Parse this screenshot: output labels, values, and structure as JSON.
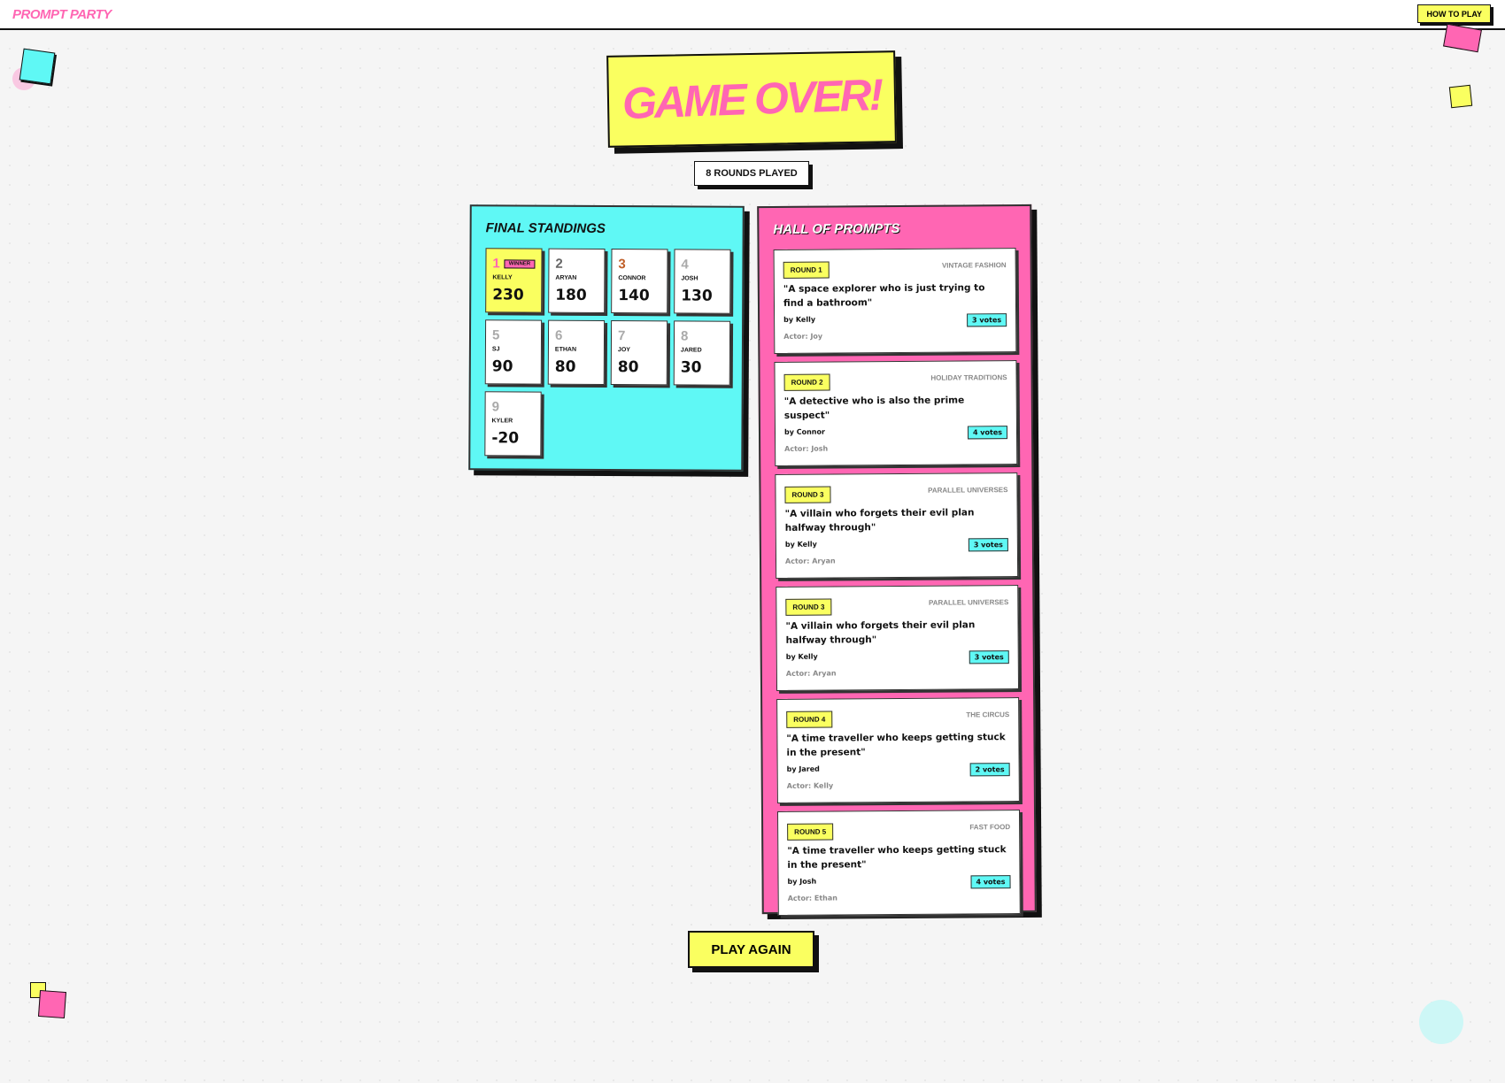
{
  "header": {
    "logo": "PROMPT PARTY",
    "how_to_play": "HOW TO PLAY"
  },
  "colors": {
    "yellow": "#faff60",
    "pink": "#ff66b3",
    "cyan": "#5ff8f5"
  },
  "title": "GAME OVER!",
  "rounds_played": "8 ROUNDS PLAYED",
  "standings": {
    "title": "FINAL STANDINGS",
    "winner_badge": "WINNER",
    "players": [
      {
        "rank": "1",
        "name": "KELLY",
        "score": "230",
        "color": "#ff66b3"
      },
      {
        "rank": "2",
        "name": "ARYAN",
        "score": "180",
        "color": "#666666"
      },
      {
        "rank": "3",
        "name": "CONNOR",
        "score": "140",
        "color": "#c0602a"
      },
      {
        "rank": "4",
        "name": "JOSH",
        "score": "130",
        "color": "#aaaaaa"
      },
      {
        "rank": "5",
        "name": "SJ",
        "score": "90",
        "color": "#aaaaaa"
      },
      {
        "rank": "6",
        "name": "ETHAN",
        "score": "80",
        "color": "#aaaaaa"
      },
      {
        "rank": "7",
        "name": "JOY",
        "score": "80",
        "color": "#aaaaaa"
      },
      {
        "rank": "8",
        "name": "JARED",
        "score": "30",
        "color": "#aaaaaa"
      },
      {
        "rank": "9",
        "name": "KYLER",
        "score": "-20",
        "color": "#aaaaaa"
      }
    ]
  },
  "hall": {
    "title": "HALL OF PROMPTS",
    "prompts": [
      {
        "round": "ROUND 1",
        "theme": "VINTAGE FASHION",
        "text": "\"A space explorer who is just trying to find a bathroom\"",
        "by": "by Kelly",
        "votes": "3 votes",
        "actor": "Actor: Joy"
      },
      {
        "round": "ROUND 2",
        "theme": "HOLIDAY TRADITIONS",
        "text": "\"A detective who is also the prime suspect\"",
        "by": "by Connor",
        "votes": "4 votes",
        "actor": "Actor: Josh"
      },
      {
        "round": "ROUND 3",
        "theme": "PARALLEL UNIVERSES",
        "text": "\"A villain who forgets their evil plan halfway through\"",
        "by": "by Kelly",
        "votes": "3 votes",
        "actor": "Actor: Aryan"
      },
      {
        "round": "ROUND 3",
        "theme": "PARALLEL UNIVERSES",
        "text": "\"A villain who forgets their evil plan halfway through\"",
        "by": "by Kelly",
        "votes": "3 votes",
        "actor": "Actor: Aryan"
      },
      {
        "round": "ROUND 4",
        "theme": "THE CIRCUS",
        "text": "\"A time traveller who keeps getting stuck in the present\"",
        "by": "by Jared",
        "votes": "2 votes",
        "actor": "Actor: Kelly"
      },
      {
        "round": "ROUND 5",
        "theme": "FAST FOOD",
        "text": "\"A time traveller who keeps getting stuck in the present\"",
        "by": "by Josh",
        "votes": "4 votes",
        "actor": "Actor: Ethan"
      }
    ]
  },
  "play_again": "PLAY AGAIN"
}
